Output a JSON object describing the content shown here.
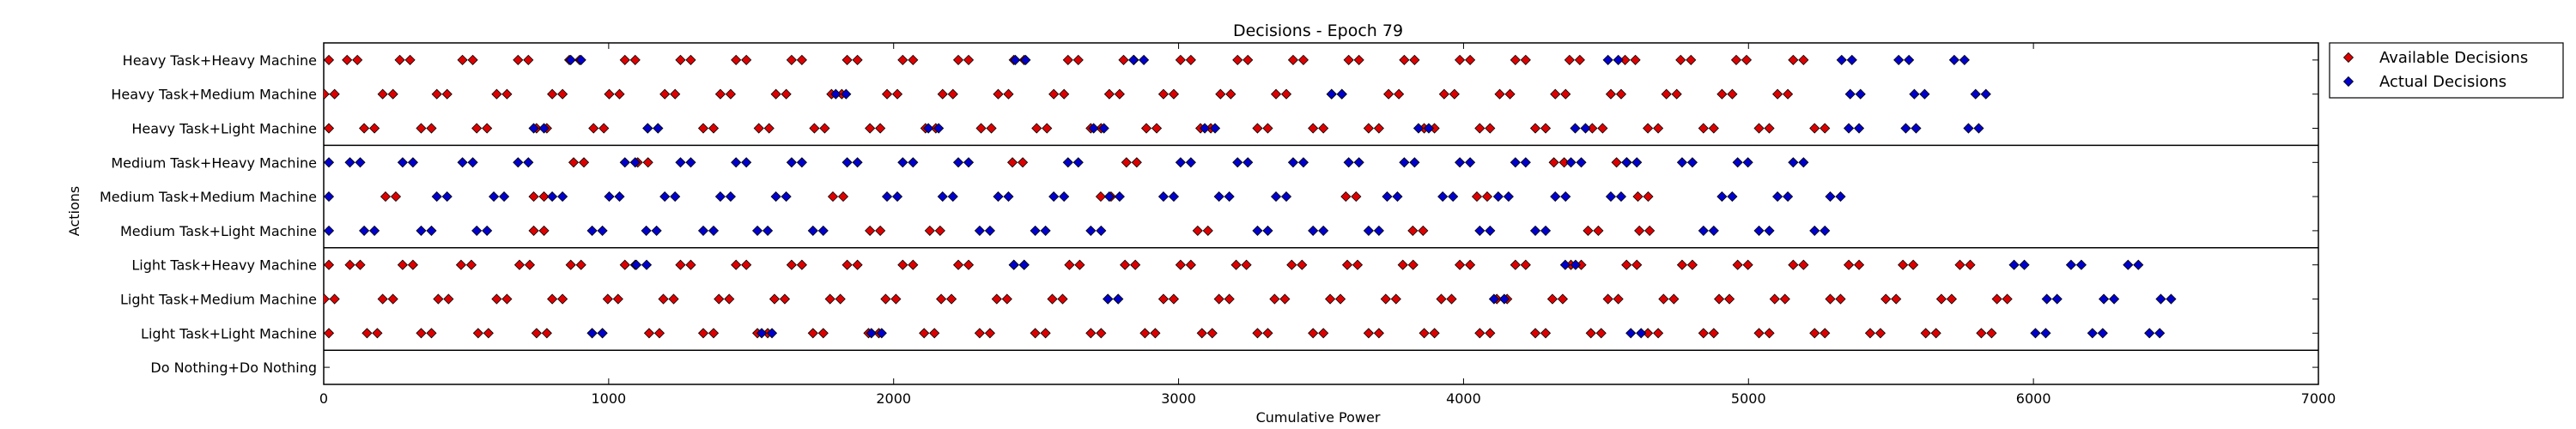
{
  "chart_data": {
    "type": "scatter",
    "title": "Decisions - Epoch 79",
    "xlabel": "Cumulative Power",
    "ylabel": "Actions",
    "xlim": [
      0,
      7000
    ],
    "xticks": [
      0,
      1000,
      2000,
      3000,
      4000,
      5000,
      6000,
      7000
    ],
    "categories": [
      "Heavy Task+Heavy Machine",
      "Heavy Task+Medium Machine",
      "Heavy Task+Light Machine",
      "Medium Task+Heavy Machine",
      "Medium Task+Medium Machine",
      "Medium Task+Light Machine",
      "Light Task+Heavy Machine",
      "Light Task+Medium Machine",
      "Light Task+Light Machine",
      "Do Nothing+Do Nothing"
    ],
    "group_separators_after_index": [
      2,
      5,
      8
    ],
    "legend": {
      "position": "outside-top-right"
    },
    "series": [
      {
        "name": "Available Decisions",
        "color": "#dd0000",
        "marker": "diamond",
        "rows": [
          [
            0,
            100,
            285,
            505,
            700,
            880,
            1075,
            1270,
            1465,
            1660,
            1855,
            2050,
            2245,
            2440,
            2630,
            2825,
            3025,
            3225,
            3420,
            3615,
            3810,
            4005,
            4200,
            4390,
            4585,
            4780,
            4975,
            5175
          ],
          [
            20,
            225,
            415,
            625,
            820,
            1020,
            1215,
            1410,
            1605,
            1800,
            1995,
            2190,
            2385,
            2580,
            2775,
            2965,
            3165,
            3360,
            3555,
            3755,
            3950,
            4145,
            4340,
            4535,
            4730,
            4925,
            5120
          ],
          [
            0,
            160,
            360,
            555,
            765,
            965,
            1155,
            1350,
            1545,
            1740,
            1935,
            2130,
            2325,
            2520,
            2710,
            2905,
            3095,
            3295,
            3490,
            3685,
            3880,
            4075,
            4270,
            4470,
            4665,
            4860,
            5055,
            5250
          ],
          [
            895,
            1120,
            2435,
            2835,
            4335,
            4555
          ],
          [
            235,
            755,
            1805,
            2745,
            3605,
            4065,
            4630
          ],
          [
            755,
            1935,
            2145,
            3085,
            3840,
            4455,
            4635
          ],
          [
            0,
            110,
            295,
            500,
            705,
            885,
            1075,
            1270,
            1465,
            1660,
            1855,
            2050,
            2245,
            2440,
            2635,
            2830,
            3025,
            3220,
            3415,
            3610,
            3805,
            4005,
            4200,
            4395,
            4590,
            4785,
            4980,
            5175,
            5370,
            5560,
            5760
          ],
          [
            20,
            225,
            420,
            625,
            820,
            1015,
            1210,
            1405,
            1600,
            1795,
            1990,
            2185,
            2380,
            2575,
            2770,
            2965,
            3160,
            3355,
            3550,
            3745,
            3940,
            4135,
            4330,
            4525,
            4720,
            4915,
            5110,
            5305,
            5500,
            5695,
            5890
          ],
          [
            0,
            170,
            360,
            560,
            765,
            960,
            1160,
            1350,
            1540,
            1735,
            1930,
            2125,
            2320,
            2515,
            2710,
            2900,
            3100,
            3295,
            3490,
            3685,
            3880,
            4075,
            4270,
            4465,
            4665,
            4860,
            5055,
            5250,
            5445,
            5640,
            5835
          ]
        ]
      },
      {
        "name": "Actual Decisions",
        "color": "#0000cc",
        "marker": "diamond",
        "rows": [
          [
            885,
            2445,
            2860,
            4525,
            5345,
            5545,
            5740
          ],
          [
            1815,
            3555,
            5375,
            5600,
            5815
          ],
          [
            755,
            1155,
            2140,
            2720,
            3110,
            3860,
            4410,
            5370,
            5570,
            5790
          ],
          [
            0,
            110,
            295,
            505,
            700,
            1075,
            1270,
            1465,
            1660,
            1855,
            2050,
            2245,
            2630,
            3025,
            3225,
            3420,
            3615,
            3810,
            4005,
            4200,
            4395,
            4590,
            4785,
            4980,
            5175
          ],
          [
            0,
            415,
            615,
            820,
            1020,
            1215,
            1410,
            1605,
            1995,
            2190,
            2385,
            2580,
            2775,
            2965,
            3160,
            3360,
            3750,
            3945,
            4140,
            4340,
            4535,
            4925,
            5120,
            5305
          ],
          [
            0,
            160,
            360,
            555,
            960,
            1150,
            1350,
            1540,
            1735,
            2320,
            2515,
            2710,
            3295,
            3490,
            3685,
            4075,
            4270,
            4860,
            5055,
            5250
          ],
          [
            1115,
            2440,
            4375,
            5950,
            6150,
            6350
          ],
          [
            2770,
            4125,
            6065,
            6265,
            6465
          ],
          [
            960,
            1555,
            1940,
            4605,
            6025,
            6225,
            6425
          ]
        ]
      }
    ]
  }
}
